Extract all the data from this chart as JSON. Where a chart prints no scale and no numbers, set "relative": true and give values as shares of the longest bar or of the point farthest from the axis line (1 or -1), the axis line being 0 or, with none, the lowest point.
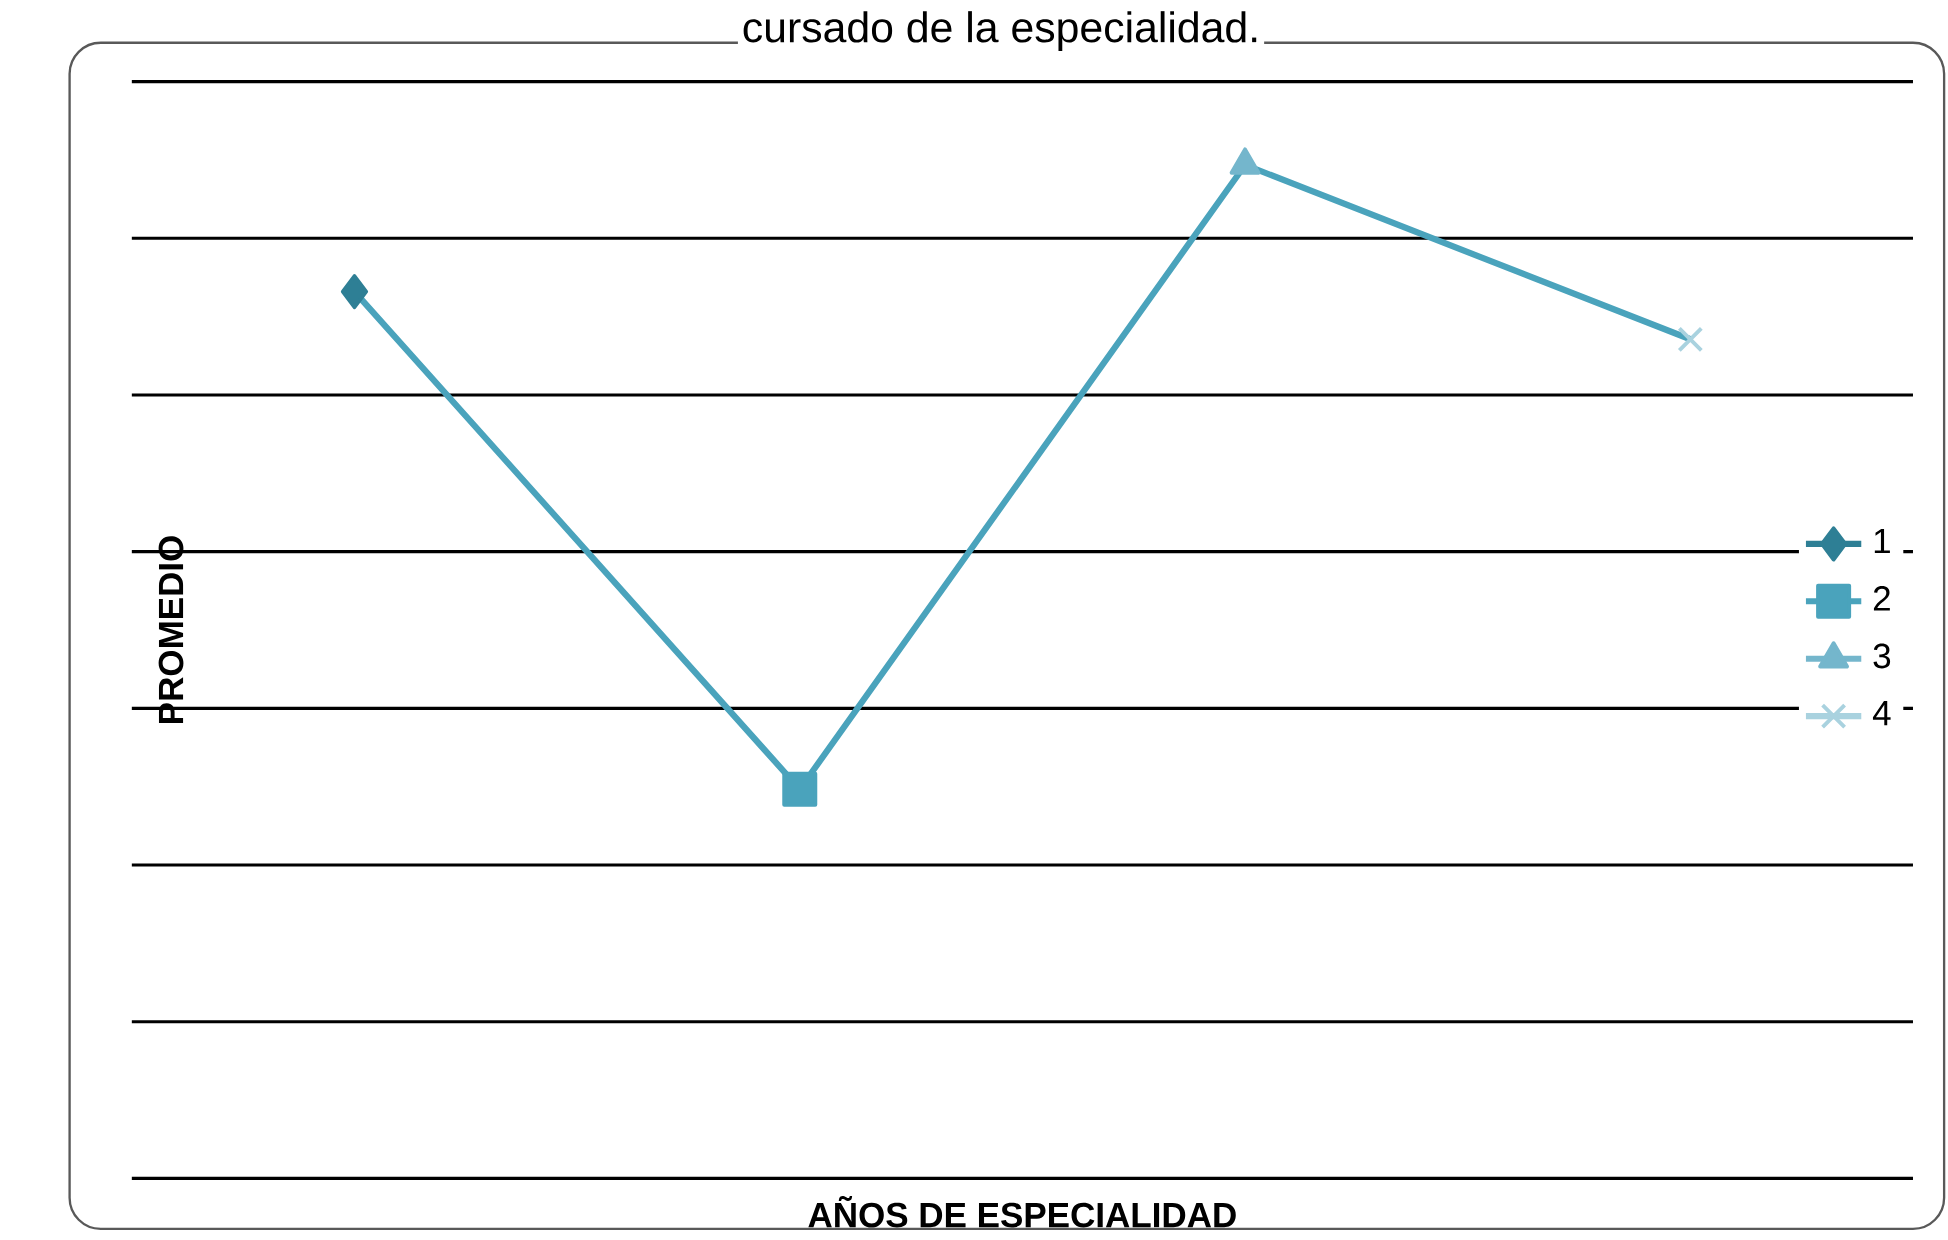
{
  "chart_data": {
    "type": "line",
    "title": "cursado de la especialidad.",
    "xlabel": "AÑOS DE ESPECIALIDAD",
    "ylabel": "PROMEDIO",
    "relative": true,
    "categories": [
      null,
      null,
      null,
      null
    ],
    "series": [
      {
        "color": "#4aa3bc",
        "marker": "none",
        "values": [
          0.875,
          0.384,
          1,
          0.828
        ]
      },
      {
        "name": "1",
        "color": "#2e7f95",
        "marker": "diamond",
        "values": [
          0.875,
          null,
          null,
          null
        ]
      },
      {
        "name": "2",
        "color": "#4aa3bc",
        "marker": "square",
        "values": [
          null,
          0.384,
          null,
          null
        ]
      },
      {
        "name": "3",
        "color": "#74b6cc",
        "marker": "triangle",
        "values": [
          null,
          null,
          1,
          null
        ]
      },
      {
        "name": "4",
        "color": "#a9d2df",
        "marker": "cross",
        "values": [
          null,
          null,
          null,
          0.828
        ]
      }
    ],
    "grid": true,
    "legend": "right"
  }
}
